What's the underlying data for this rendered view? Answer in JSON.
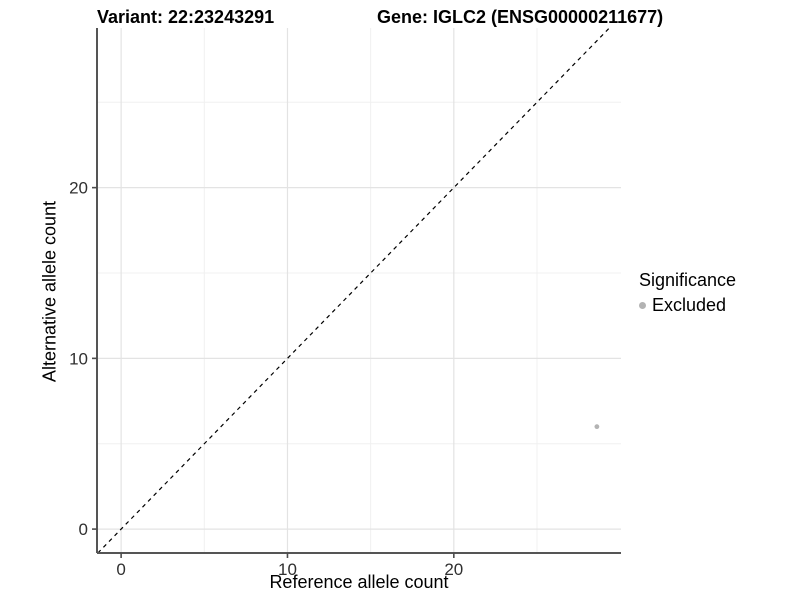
{
  "chart_data": {
    "type": "scatter",
    "titles": {
      "variant": "Variant: 22:23243291",
      "gene": "Gene: IGLC2 (ENSG00000211677)"
    },
    "xlabel": "Reference allele count",
    "ylabel": "Alternative allele count",
    "xlim": [
      -1.45,
      30.05
    ],
    "ylim": [
      -1.4,
      29.35
    ],
    "x_ticks": [
      0,
      10,
      20
    ],
    "y_ticks": [
      0,
      10,
      20
    ],
    "x_minor_gridlines": [
      5,
      15,
      25
    ],
    "y_minor_gridlines": [
      5,
      15,
      25
    ],
    "grid": true,
    "legend": {
      "title": "Significance",
      "position": "right",
      "items": [
        {
          "label": "Excluded",
          "color": "#b3b3b3"
        }
      ]
    },
    "reference_line": {
      "kind": "identity",
      "slope": 1,
      "intercept": 0,
      "style": "dashed",
      "color": "#000000"
    },
    "series": [
      {
        "name": "Excluded",
        "color": "#b3b3b3",
        "points": [
          {
            "x": 28.6,
            "y": 6
          }
        ]
      }
    ],
    "colors": {
      "background": "#ffffff",
      "axis_line": "#555555",
      "tick_mark": "#4d4d4d",
      "tick_text": "#303030",
      "grid_major": "#e3e3e3",
      "grid_minor": "#f0f0f0",
      "point": "#b3b3b3"
    }
  }
}
